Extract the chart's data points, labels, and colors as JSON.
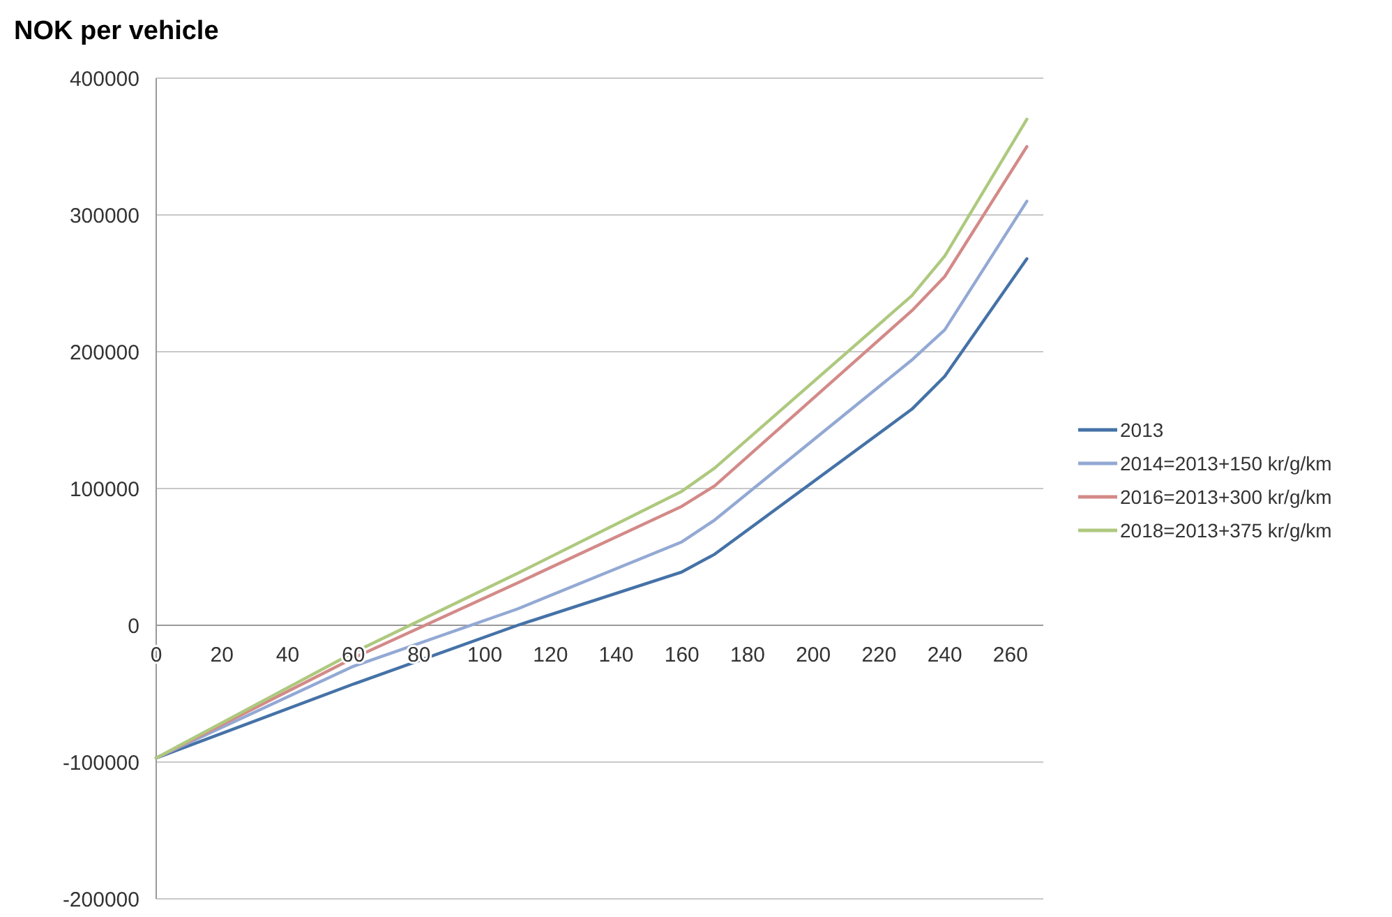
{
  "chart_data": {
    "type": "line",
    "title": "NOK per vehicle",
    "x": [
      0,
      60,
      110,
      160,
      170,
      230,
      240,
      265
    ],
    "xlim": [
      0,
      270
    ],
    "xticks": [
      0,
      20,
      40,
      60,
      80,
      100,
      120,
      140,
      160,
      180,
      200,
      220,
      240,
      260
    ],
    "ylim": [
      -200000,
      400000
    ],
    "yticks": [
      -200000,
      -100000,
      0,
      100000,
      200000,
      300000,
      400000
    ],
    "grid": "y",
    "legend": "right",
    "series": [
      {
        "name": "2013",
        "color": "#4572a7",
        "values": [
          -97000,
          -43000,
          0,
          39000,
          52000,
          158000,
          182000,
          268000
        ]
      },
      {
        "name": "2014=2013+150 kr/g/km",
        "color": "#93a9d4",
        "values": [
          -97000,
          -30000,
          12000,
          61000,
          77000,
          194000,
          216000,
          310000
        ]
      },
      {
        "name": "2016=2013+300 kr/g/km",
        "color": "#d38a88",
        "values": [
          -97000,
          -24000,
          31000,
          87000,
          102000,
          230000,
          255000,
          350000
        ]
      },
      {
        "name": "2018=2013+375 kr/g/km",
        "color": "#aec97e",
        "values": [
          -97000,
          -20000,
          38000,
          98000,
          115000,
          241000,
          270000,
          370000
        ]
      }
    ]
  }
}
